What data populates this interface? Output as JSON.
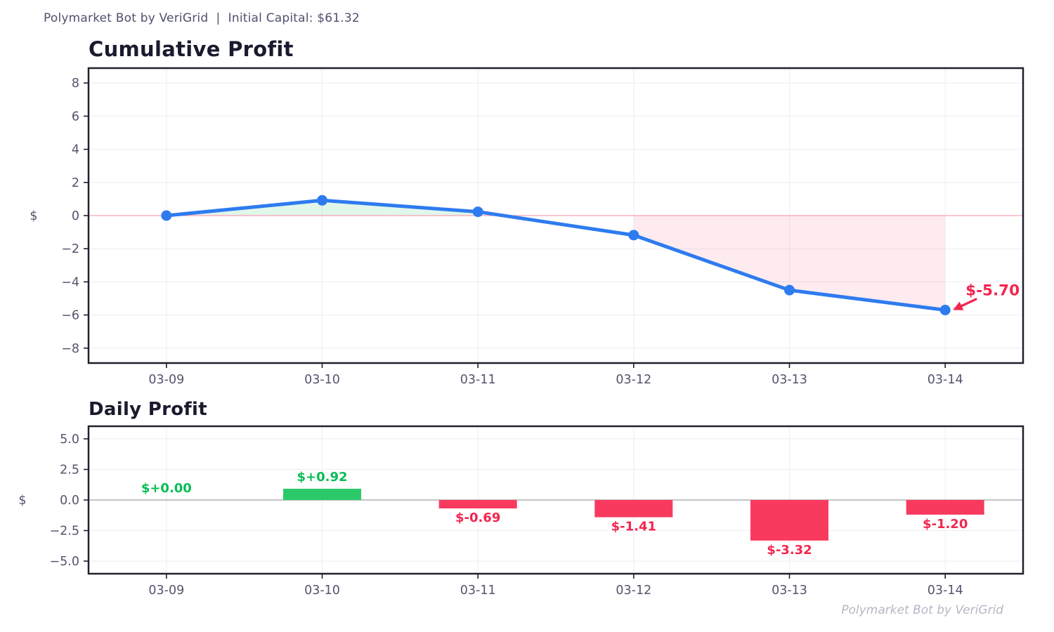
{
  "header": {
    "text": "Polymarket Bot by VeriGrid  |  Initial Capital: $61.32"
  },
  "watermark": "Polymarket Bot by VeriGrid",
  "chart_data": [
    {
      "type": "line",
      "title": "Cumulative Profit",
      "ylabel": "$",
      "categories": [
        "03-09",
        "03-10",
        "03-11",
        "03-12",
        "03-13",
        "03-14"
      ],
      "values": [
        0.0,
        0.92,
        0.23,
        -1.18,
        -4.5,
        -5.7
      ],
      "yticks": [
        8,
        6,
        4,
        2,
        0,
        -2,
        -4,
        -6,
        -8
      ],
      "ytick_labels": [
        "8",
        "6",
        "4",
        "2",
        "0",
        "−2",
        "−4",
        "−6",
        "−8"
      ],
      "ylim": [
        -8.9,
        8.9
      ],
      "grid": true,
      "legend": "none",
      "line_color": "#2e7bf0",
      "marker_color": "#2e7bf0",
      "positive_fill": "rgba(46,204,113,0.15)",
      "negative_fill": "rgba(249,58,95,0.10)",
      "zero_line_color": "#f9a0b2",
      "annotation": {
        "text": "$-5.70",
        "target_index": 5,
        "color": "#f4254e"
      }
    },
    {
      "type": "bar",
      "title": "Daily Profit",
      "ylabel": "$",
      "categories": [
        "03-09",
        "03-10",
        "03-11",
        "03-12",
        "03-13",
        "03-14"
      ],
      "values": [
        0.0,
        0.92,
        -0.69,
        -1.41,
        -3.32,
        -1.2
      ],
      "bar_labels": [
        "$+0.00",
        "$+0.92",
        "$-0.69",
        "$-1.41",
        "$-3.32",
        "$-1.20"
      ],
      "yticks": [
        5.0,
        2.5,
        0.0,
        -2.5,
        -5.0
      ],
      "ytick_labels": [
        "5.0",
        "2.5",
        "0.0",
        "−2.5",
        "−5.0"
      ],
      "ylim": [
        -6.03,
        6.03
      ],
      "grid": true,
      "legend": "none",
      "positive_color": "#2cc96a",
      "negative_color": "#f93a5f",
      "positive_label_color": "#06bd55",
      "negative_label_color": "#f4254e",
      "zero_line_color": "#b0b0b0"
    }
  ],
  "style": {
    "axis_frame_color": "#20202f",
    "grid_color": "#ededf4",
    "tick_label_color": "#54546e",
    "title_color": "#1a1a2e"
  }
}
